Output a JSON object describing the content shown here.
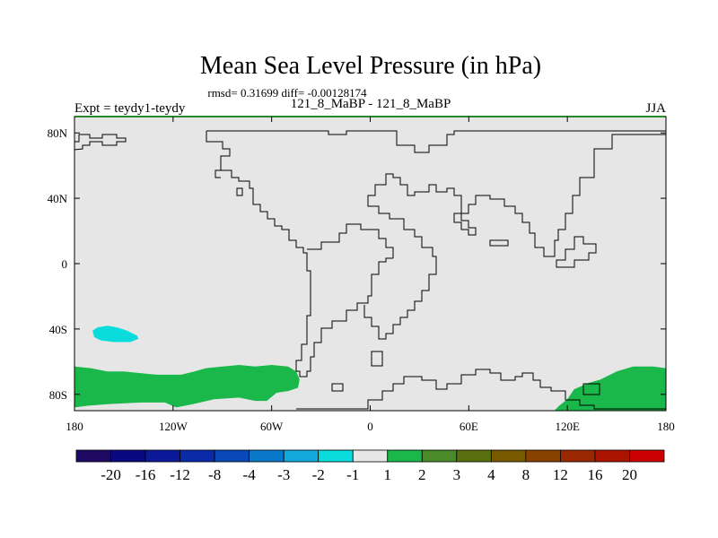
{
  "chart_data": {
    "type": "heatmap",
    "title": "Mean Sea Level Pressure (in hPa)",
    "stats": "rmsd= 0.31699 diff= -0.00128174",
    "left_label": "Expt = teydy1-teydy",
    "center_label": "121_8_MaBP - 121_8_MaBP",
    "right_label": "JJA",
    "xlim": [
      -180,
      180
    ],
    "ylim": [
      -90,
      90
    ],
    "x_ticks": [
      {
        "value": -180,
        "label": "180"
      },
      {
        "value": -120,
        "label": "120W"
      },
      {
        "value": -60,
        "label": "60W"
      },
      {
        "value": 0,
        "label": "0"
      },
      {
        "value": 60,
        "label": "60E"
      },
      {
        "value": 120,
        "label": "120E"
      },
      {
        "value": 180,
        "label": "180"
      }
    ],
    "y_ticks": [
      {
        "value": 80,
        "label": "80N"
      },
      {
        "value": 40,
        "label": "40N"
      },
      {
        "value": 0,
        "label": "0"
      },
      {
        "value": -40,
        "label": "40S"
      },
      {
        "value": -80,
        "label": "80S"
      }
    ],
    "colorbar": {
      "colors": [
        "#1f0a63",
        "#0a0a80",
        "#0b1a9a",
        "#0b2aa8",
        "#0a4ab8",
        "#0a78c8",
        "#14a8dc",
        "#0adcdc",
        "#e6e6e6",
        "#1ab84a",
        "#4a8a28",
        "#5a7010",
        "#7a5a00",
        "#8a4200",
        "#9a2800",
        "#aa1400",
        "#cc0000"
      ],
      "labels": [
        "-20",
        "-16",
        "-12",
        "-8",
        "-4",
        "-3",
        "-2",
        "-1",
        "1",
        "2",
        "3",
        "4",
        "8",
        "12",
        "16",
        "20"
      ]
    },
    "background_color": "#e6e6e6",
    "anomalies": [
      {
        "name": "southern-ocean-west",
        "level_label": "2",
        "color": "#1ab84a",
        "points": [
          [
            -180,
            -63
          ],
          [
            -170,
            -64
          ],
          [
            -160,
            -66
          ],
          [
            -150,
            -66
          ],
          [
            -140,
            -67
          ],
          [
            -130,
            -68
          ],
          [
            -115,
            -68
          ],
          [
            -107,
            -66
          ],
          [
            -100,
            -64
          ],
          [
            -90,
            -63
          ],
          [
            -80,
            -62
          ],
          [
            -70,
            -63
          ],
          [
            -60,
            -62
          ],
          [
            -50,
            -63
          ],
          [
            -45,
            -66
          ],
          [
            -43,
            -71
          ],
          [
            -44,
            -76
          ],
          [
            -50,
            -78
          ],
          [
            -57,
            -79
          ],
          [
            -63,
            -84
          ],
          [
            -70,
            -84
          ],
          [
            -80,
            -82
          ],
          [
            -95,
            -83
          ],
          [
            -108,
            -86
          ],
          [
            -118,
            -88
          ],
          [
            -125,
            -85
          ],
          [
            -140,
            -85
          ],
          [
            -160,
            -86
          ],
          [
            -172,
            -87
          ],
          [
            -180,
            -88
          ]
        ]
      },
      {
        "name": "southern-ocean-east",
        "level_label": "2",
        "color": "#1ab84a",
        "points": [
          [
            180,
            -64
          ],
          [
            172,
            -63
          ],
          [
            160,
            -63
          ],
          [
            150,
            -66
          ],
          [
            140,
            -71
          ],
          [
            133,
            -73
          ],
          [
            124,
            -77
          ],
          [
            120,
            -83
          ],
          [
            115,
            -87
          ],
          [
            112,
            -90
          ],
          [
            180,
            -90
          ]
        ]
      },
      {
        "name": "south-pacific-low",
        "level_label": "-1",
        "color": "#0adcdc",
        "points": [
          [
            -166,
            -39
          ],
          [
            -160,
            -38
          ],
          [
            -154,
            -39
          ],
          [
            -148,
            -41
          ],
          [
            -142,
            -44
          ],
          [
            -141,
            -46
          ],
          [
            -146,
            -48
          ],
          [
            -156,
            -48
          ],
          [
            -164,
            -47
          ],
          [
            -168,
            -45
          ],
          [
            -169,
            -41
          ]
        ]
      }
    ]
  }
}
